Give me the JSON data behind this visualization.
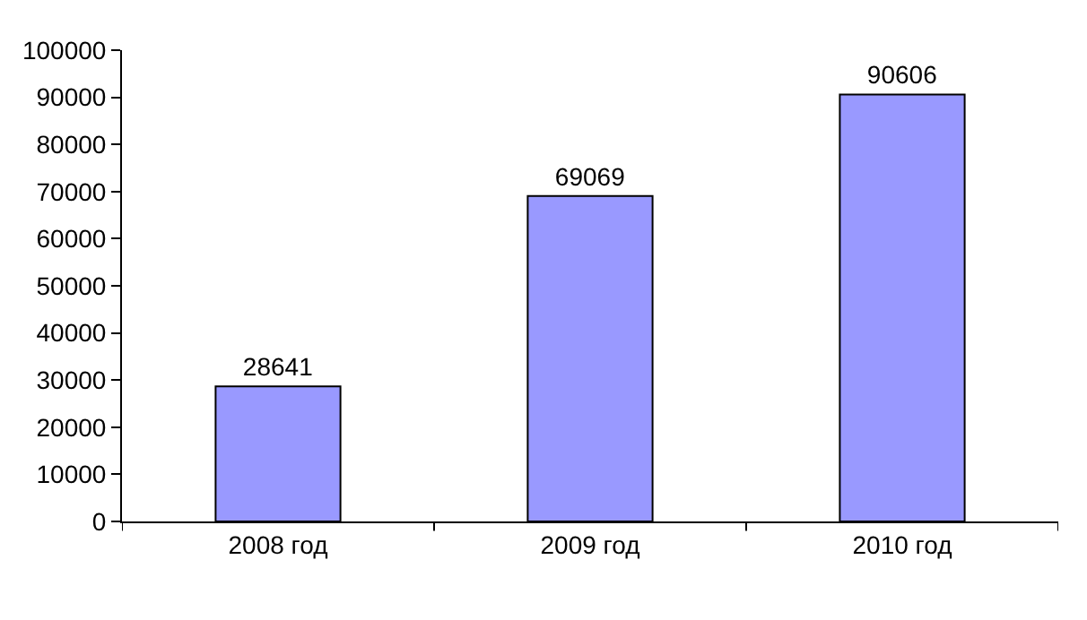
{
  "chart_data": {
    "type": "bar",
    "categories": [
      "2008 год",
      "2009 год",
      "2010 год"
    ],
    "values": [
      28641,
      69069,
      90606
    ],
    "color": "#9999ff",
    "ylim": [
      0,
      100000
    ],
    "yticks": [
      0,
      10000,
      20000,
      30000,
      40000,
      50000,
      60000,
      70000,
      80000,
      90000,
      100000
    ],
    "data_labels": true
  }
}
